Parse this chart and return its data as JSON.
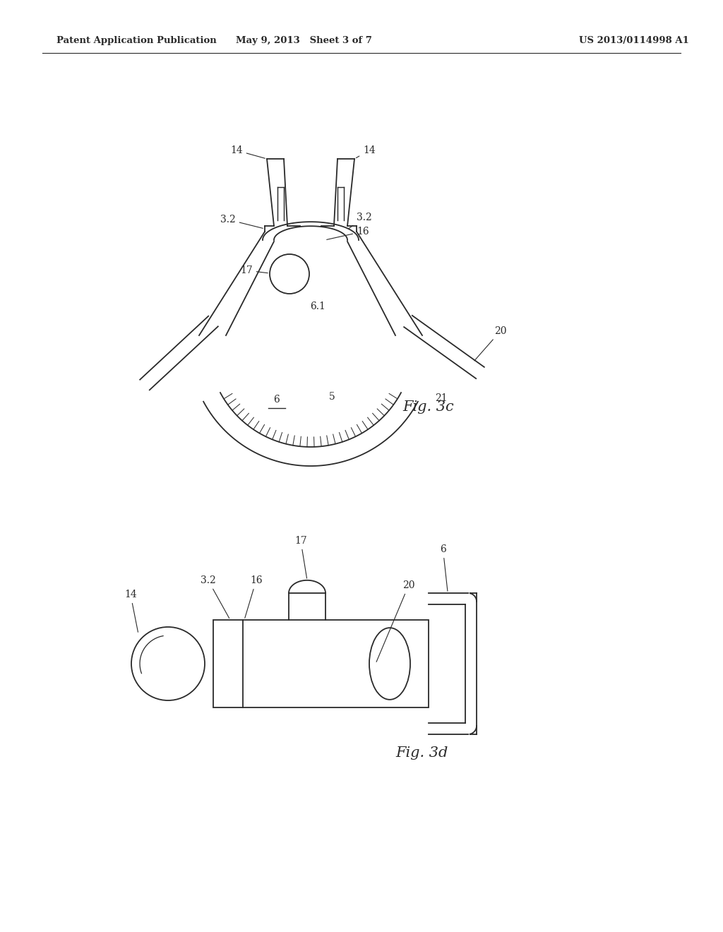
{
  "bg_color": "#ffffff",
  "line_color": "#2a2a2a",
  "lw": 1.3,
  "header_left": "Patent Application Publication",
  "header_mid": "May 9, 2013   Sheet 3 of 7",
  "header_right": "US 2013/0114998 A1",
  "fig3c_label": "Fig. 3c",
  "fig3d_label": "Fig. 3d"
}
